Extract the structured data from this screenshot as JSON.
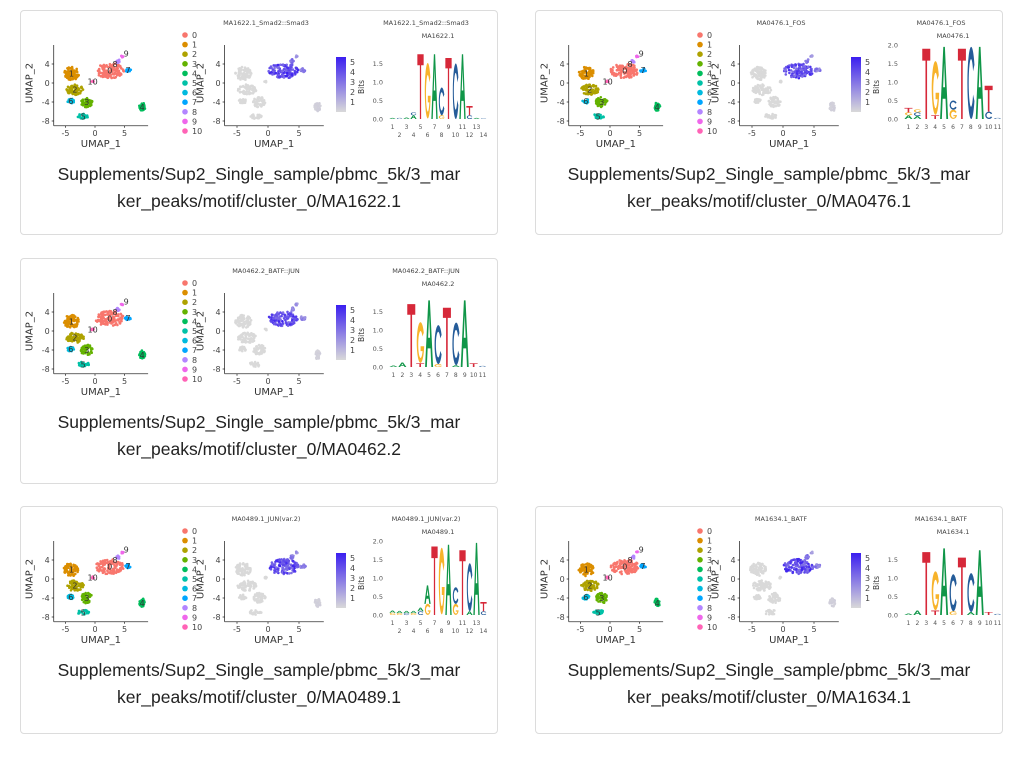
{
  "colors": {
    "clusters": [
      "#F8766D",
      "#DB8E00",
      "#AEA200",
      "#64B200",
      "#00BD5C",
      "#00C1A7",
      "#00BADE",
      "#00A6FF",
      "#B385FF",
      "#EF67EB",
      "#FF63B6"
    ],
    "feature_low": "#d9d9d9",
    "feature_high": "#3b1ff0",
    "A": "#109648",
    "C": "#255C99",
    "G": "#F7B32B",
    "T": "#D62839"
  },
  "umap": {
    "xlabel": "UMAP_1",
    "ylabel": "UMAP_2",
    "xticks": [
      -5,
      0,
      5
    ],
    "yticks": [
      -8,
      -4,
      0,
      4
    ],
    "xlim": [
      -7,
      9
    ],
    "ylim": [
      -9,
      8
    ],
    "legend": [
      "0",
      "1",
      "2",
      "3",
      "4",
      "5",
      "6",
      "7",
      "8",
      "9",
      "10"
    ],
    "clusters": [
      {
        "label": "0",
        "x": 2.5,
        "y": 2.6,
        "rx": 2.4,
        "ry": 1.6,
        "n": 60,
        "expr": 4.5
      },
      {
        "label": "1",
        "x": -4,
        "y": 2,
        "rx": 1.3,
        "ry": 1.4,
        "n": 40,
        "expr": 0
      },
      {
        "label": "2",
        "x": -3.4,
        "y": -1.4,
        "rx": 1.5,
        "ry": 1.1,
        "n": 35,
        "expr": 0
      },
      {
        "label": "3",
        "x": -1.4,
        "y": -4,
        "rx": 1,
        "ry": 1.1,
        "n": 25,
        "expr": 0
      },
      {
        "label": "4",
        "x": 8,
        "y": -5,
        "rx": 0.5,
        "ry": 0.9,
        "n": 15,
        "expr": 0.3
      },
      {
        "label": "5",
        "x": -2,
        "y": -7,
        "rx": 1,
        "ry": 0.5,
        "n": 12,
        "expr": 0
      },
      {
        "label": "6",
        "x": -4.1,
        "y": -3.8,
        "rx": 0.6,
        "ry": 0.5,
        "n": 10,
        "expr": 0
      },
      {
        "label": "7",
        "x": 5.6,
        "y": 2.7,
        "rx": 0.5,
        "ry": 0.4,
        "n": 8,
        "expr": 3
      },
      {
        "label": "8",
        "x": 3.9,
        "y": 4.6,
        "rx": 0.3,
        "ry": 0.4,
        "n": 5,
        "expr": 3
      },
      {
        "label": "9",
        "x": 4.6,
        "y": 5.6,
        "rx": 0.2,
        "ry": 0.2,
        "n": 3,
        "expr": 2
      },
      {
        "label": "10",
        "x": -0.4,
        "y": 0.3,
        "rx": 0.2,
        "ry": 0.2,
        "n": 3,
        "expr": 0
      }
    ],
    "colorbar_ticks": [
      "5",
      "4",
      "3",
      "2",
      "1"
    ]
  },
  "cards": [
    {
      "feature_title": "MA1622.1_Smad2::Smad3",
      "logo_title": "MA1622.1_Smad2::Smad3",
      "logo_subtitle": "MA1622.1",
      "logo_yticks": [
        "0.0",
        "0.5",
        "1.0",
        "1.5"
      ],
      "logo_ylabel": "Bits",
      "positions": [
        "1",
        "2",
        "3",
        "4",
        "5",
        "6",
        "7",
        "8",
        "9",
        "10",
        "11",
        "12",
        "13",
        "14"
      ],
      "motif": [
        [
          [
            "A",
            0.03
          ]
        ],
        [
          [
            "C",
            0.03
          ]
        ],
        [
          [
            "A",
            0.04
          ]
        ],
        [
          [
            "A",
            0.1
          ],
          [
            "C",
            0.08
          ]
        ],
        [
          [
            "T",
            1.75
          ]
        ],
        [
          [
            "G",
            1.5
          ]
        ],
        [
          [
            "A",
            1.75
          ]
        ],
        [
          [
            "G",
            0.1
          ],
          [
            "C",
            0.75
          ]
        ],
        [
          [
            "T",
            1.65
          ]
        ],
        [
          [
            "C",
            1.5
          ]
        ],
        [
          [
            "A",
            1.75
          ]
        ],
        [
          [
            "C",
            0.1
          ],
          [
            "T",
            0.25
          ]
        ],
        [
          [
            "A",
            0.03
          ]
        ],
        [
          [
            "C",
            0.02
          ]
        ]
      ],
      "caption_lines": [
        "Supplements/Sup2_Single_sample/pbmc_5k/3_mar",
        "ker_peaks/motif/cluster_0/MA1622.1"
      ]
    },
    {
      "feature_title": "MA0476.1_FOS",
      "logo_title": "MA0476.1_FOS",
      "logo_subtitle": "MA0476.1",
      "logo_yticks": [
        "0.0",
        "0.5",
        "1.0",
        "1.5",
        "2.0"
      ],
      "logo_ylabel": "Bits",
      "positions": [
        "1",
        "2",
        "3",
        "4",
        "5",
        "6",
        "7",
        "8",
        "9",
        "10",
        "11"
      ],
      "motif": [
        [
          [
            "A",
            0.1
          ],
          [
            "G",
            0.08
          ],
          [
            "T",
            0.12
          ]
        ],
        [
          [
            "A",
            0.08
          ],
          [
            "C",
            0.1
          ],
          [
            "G",
            0.08
          ]
        ],
        [
          [
            "T",
            1.9
          ]
        ],
        [
          [
            "T",
            0.1
          ],
          [
            "G",
            1.45
          ]
        ],
        [
          [
            "A",
            1.95
          ]
        ],
        [
          [
            "G",
            0.25
          ],
          [
            "C",
            0.25
          ]
        ],
        [
          [
            "T",
            1.9
          ]
        ],
        [
          [
            "C",
            1.95
          ]
        ],
        [
          [
            "A",
            1.95
          ]
        ],
        [
          [
            "C",
            0.2
          ],
          [
            "T",
            0.7
          ]
        ],
        [
          [
            "C",
            0.03
          ]
        ]
      ],
      "caption_lines": [
        "Supplements/Sup2_Single_sample/pbmc_5k/3_mar",
        "ker_peaks/motif/cluster_0/MA0476.1"
      ]
    },
    {
      "feature_title": "MA0462.2_BATF::JUN",
      "logo_title": "MA0462.2_BATF::JUN",
      "logo_subtitle": "MA0462.2",
      "logo_yticks": [
        "0.0",
        "0.5",
        "1.0",
        "1.5"
      ],
      "logo_ylabel": "Bits",
      "positions": [
        "1",
        "2",
        "3",
        "4",
        "5",
        "6",
        "7",
        "8",
        "9",
        "10",
        "11"
      ],
      "motif": [
        [
          [
            "A",
            0.04
          ]
        ],
        [
          [
            "A",
            0.12
          ]
        ],
        [
          [
            "T",
            1.7
          ]
        ],
        [
          [
            "T",
            0.1
          ],
          [
            "G",
            1.1
          ]
        ],
        [
          [
            "A",
            1.8
          ]
        ],
        [
          [
            "G",
            0.08
          ],
          [
            "C",
            1.05
          ]
        ],
        [
          [
            "T",
            1.6
          ]
        ],
        [
          [
            "A",
            0.05
          ],
          [
            "C",
            1.15
          ]
        ],
        [
          [
            "A",
            1.8
          ]
        ],
        [
          [
            "T",
            0.1
          ]
        ],
        [
          [
            "C",
            0.03
          ]
        ]
      ],
      "caption_lines": [
        "Supplements/Sup2_Single_sample/pbmc_5k/3_mar",
        "ker_peaks/motif/cluster_0/MA0462.2"
      ]
    },
    {
      "feature_title": "MA0489.1_JUN(var.2)",
      "logo_title": "MA0489.1_JUN(var.2)",
      "logo_subtitle": "MA0489.1",
      "logo_yticks": [
        "0.0",
        "0.5",
        "1.0",
        "1.5",
        "2.0"
      ],
      "logo_ylabel": "Bits",
      "positions": [
        "1",
        "2",
        "3",
        "4",
        "5",
        "6",
        "7",
        "8",
        "9",
        "10",
        "11",
        "12",
        "13",
        "14"
      ],
      "motif": [
        [
          [
            "G",
            0.06
          ],
          [
            "A",
            0.06
          ]
        ],
        [
          [
            "G",
            0.05
          ],
          [
            "A",
            0.06
          ]
        ],
        [
          [
            "C",
            0.05
          ],
          [
            "A",
            0.06
          ]
        ],
        [
          [
            "G",
            0.05
          ],
          [
            "A",
            0.06
          ]
        ],
        [
          [
            "C",
            0.1
          ],
          [
            "A",
            0.1
          ]
        ],
        [
          [
            "G",
            0.3
          ],
          [
            "A",
            0.5
          ]
        ],
        [
          [
            "T",
            1.85
          ]
        ],
        [
          [
            "G",
            1.8
          ]
        ],
        [
          [
            "A",
            1.9
          ]
        ],
        [
          [
            "G",
            0.3
          ],
          [
            "C",
            0.45
          ]
        ],
        [
          [
            "T",
            1.75
          ]
        ],
        [
          [
            "A",
            0.1
          ],
          [
            "C",
            1.3
          ]
        ],
        [
          [
            "A",
            1.95
          ]
        ],
        [
          [
            "C",
            0.1
          ],
          [
            "T",
            0.25
          ]
        ]
      ],
      "caption_lines": [
        "Supplements/Sup2_Single_sample/pbmc_5k/3_mar",
        "ker_peaks/motif/cluster_0/MA0489.1"
      ]
    },
    {
      "feature_title": "MA1634.1_BATF",
      "logo_title": "MA1634.1_BATF",
      "logo_subtitle": "MA1634.1",
      "logo_yticks": [
        "0.0",
        "0.5",
        "1.0",
        "1.5"
      ],
      "logo_ylabel": "Bits",
      "positions": [
        "1",
        "2",
        "3",
        "4",
        "5",
        "6",
        "7",
        "8",
        "9",
        "10",
        "11"
      ],
      "motif": [
        [
          [
            "A",
            0.04
          ]
        ],
        [
          [
            "A",
            0.12
          ]
        ],
        [
          [
            "T",
            1.7
          ]
        ],
        [
          [
            "T",
            0.12
          ],
          [
            "G",
            1.05
          ]
        ],
        [
          [
            "A",
            1.8
          ]
        ],
        [
          [
            "G",
            0.1
          ],
          [
            "C",
            1.0
          ]
        ],
        [
          [
            "T",
            1.55
          ]
        ],
        [
          [
            "A",
            0.08
          ],
          [
            "C",
            1.05
          ]
        ],
        [
          [
            "A",
            1.75
          ]
        ],
        [
          [
            "T",
            0.08
          ]
        ],
        [
          [
            "C",
            0.03
          ]
        ]
      ],
      "caption_lines": [
        "Supplements/Sup2_Single_sample/pbmc_5k/3_mar",
        "ker_peaks/motif/cluster_0/MA1634.1"
      ]
    }
  ]
}
